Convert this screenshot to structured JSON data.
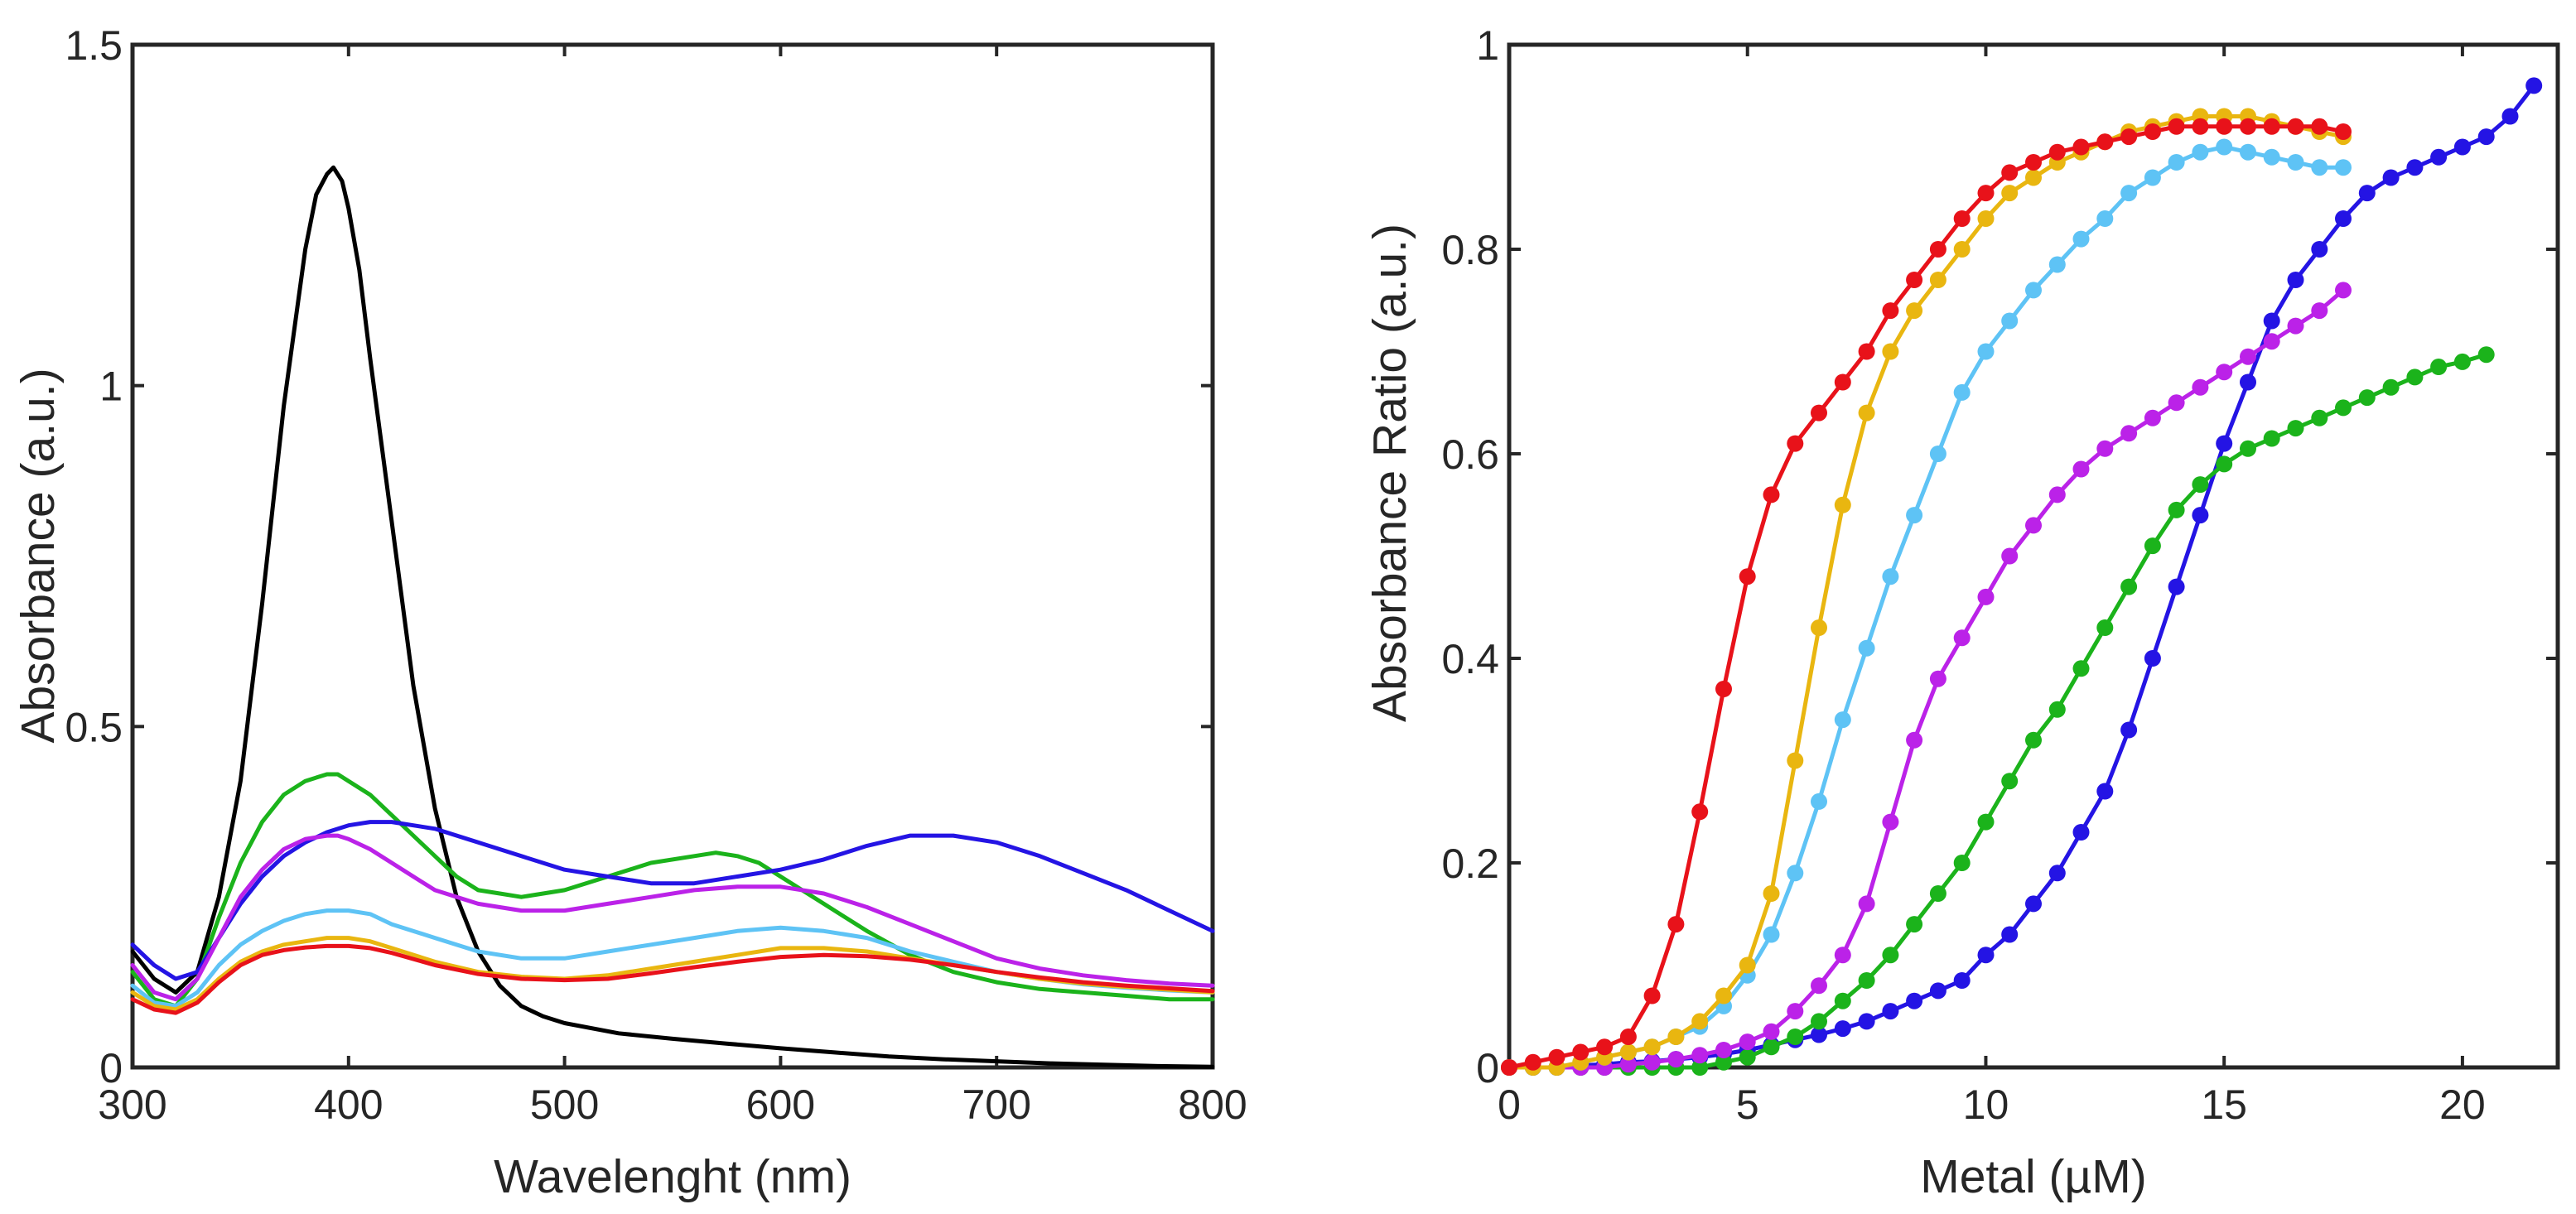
{
  "chart_data": [
    {
      "type": "line",
      "xlabel": "Wavelenght (nm)",
      "ylabel": "Absorbance (a.u.)",
      "xlim": [
        300,
        800
      ],
      "ylim": [
        0,
        1.5
      ],
      "xticks": [
        300,
        400,
        500,
        600,
        700,
        800
      ],
      "xtick_labels": [
        "300",
        "400",
        "500",
        "600",
        "700",
        "800"
      ],
      "yticks": [
        0,
        0.5,
        1,
        1.5
      ],
      "ytick_labels": [
        "0",
        "0.5",
        "1",
        "1.5"
      ],
      "grid": false,
      "series": [
        {
          "name": "black",
          "color": "#000000",
          "x": [
            300,
            310,
            320,
            330,
            340,
            350,
            360,
            370,
            380,
            385,
            390,
            393,
            397,
            400,
            405,
            410,
            420,
            430,
            440,
            450,
            460,
            470,
            480,
            490,
            500,
            525,
            550,
            575,
            600,
            625,
            650,
            675,
            700,
            725,
            750,
            775,
            800
          ],
          "y": [
            0.17,
            0.13,
            0.11,
            0.14,
            0.25,
            0.42,
            0.68,
            0.97,
            1.2,
            1.28,
            1.31,
            1.32,
            1.3,
            1.26,
            1.17,
            1.04,
            0.8,
            0.56,
            0.38,
            0.25,
            0.17,
            0.12,
            0.09,
            0.075,
            0.065,
            0.05,
            0.042,
            0.035,
            0.028,
            0.022,
            0.016,
            0.012,
            0.009,
            0.006,
            0.004,
            0.002,
            0.001
          ]
        },
        {
          "name": "green",
          "color": "#1bb31b",
          "x": [
            300,
            310,
            320,
            330,
            340,
            350,
            360,
            370,
            380,
            390,
            395,
            400,
            410,
            420,
            430,
            440,
            450,
            460,
            470,
            480,
            500,
            520,
            540,
            560,
            570,
            580,
            590,
            600,
            620,
            640,
            660,
            680,
            700,
            720,
            740,
            760,
            780,
            800
          ],
          "y": [
            0.14,
            0.1,
            0.09,
            0.13,
            0.22,
            0.3,
            0.36,
            0.4,
            0.42,
            0.43,
            0.43,
            0.42,
            0.4,
            0.37,
            0.34,
            0.31,
            0.28,
            0.26,
            0.255,
            0.25,
            0.26,
            0.28,
            0.3,
            0.31,
            0.315,
            0.31,
            0.3,
            0.28,
            0.24,
            0.2,
            0.165,
            0.14,
            0.125,
            0.115,
            0.11,
            0.105,
            0.1,
            0.1
          ]
        },
        {
          "name": "blue",
          "color": "#2414e4",
          "x": [
            300,
            310,
            320,
            330,
            340,
            350,
            360,
            370,
            380,
            390,
            400,
            410,
            420,
            430,
            440,
            460,
            480,
            500,
            520,
            540,
            560,
            580,
            600,
            620,
            640,
            660,
            680,
            700,
            720,
            740,
            760,
            780,
            800
          ],
          "y": [
            0.18,
            0.15,
            0.13,
            0.14,
            0.19,
            0.24,
            0.28,
            0.31,
            0.33,
            0.345,
            0.355,
            0.36,
            0.36,
            0.355,
            0.35,
            0.33,
            0.31,
            0.29,
            0.28,
            0.27,
            0.27,
            0.28,
            0.29,
            0.305,
            0.325,
            0.34,
            0.34,
            0.33,
            0.31,
            0.285,
            0.26,
            0.23,
            0.2
          ]
        },
        {
          "name": "magenta",
          "color": "#bb22e8",
          "x": [
            300,
            310,
            320,
            330,
            340,
            350,
            360,
            370,
            380,
            390,
            395,
            400,
            410,
            420,
            430,
            440,
            460,
            480,
            500,
            520,
            540,
            560,
            580,
            590,
            600,
            620,
            640,
            660,
            680,
            700,
            720,
            740,
            760,
            780,
            800
          ],
          "y": [
            0.15,
            0.11,
            0.1,
            0.13,
            0.19,
            0.25,
            0.29,
            0.32,
            0.335,
            0.34,
            0.34,
            0.335,
            0.32,
            0.3,
            0.28,
            0.26,
            0.24,
            0.23,
            0.23,
            0.24,
            0.25,
            0.26,
            0.265,
            0.265,
            0.265,
            0.255,
            0.235,
            0.21,
            0.185,
            0.16,
            0.145,
            0.135,
            0.128,
            0.123,
            0.12
          ]
        },
        {
          "name": "light blue",
          "color": "#5ec3f5",
          "x": [
            300,
            310,
            320,
            330,
            340,
            350,
            360,
            370,
            380,
            390,
            400,
            410,
            420,
            440,
            460,
            480,
            500,
            520,
            540,
            560,
            580,
            600,
            620,
            640,
            660,
            680,
            700,
            720,
            740,
            760,
            780,
            800
          ],
          "y": [
            0.12,
            0.095,
            0.09,
            0.11,
            0.15,
            0.18,
            0.2,
            0.215,
            0.225,
            0.23,
            0.23,
            0.225,
            0.21,
            0.19,
            0.17,
            0.16,
            0.16,
            0.17,
            0.18,
            0.19,
            0.2,
            0.205,
            0.2,
            0.19,
            0.17,
            0.155,
            0.14,
            0.13,
            0.122,
            0.117,
            0.113,
            0.11
          ]
        },
        {
          "name": "yellow",
          "color": "#e9b610",
          "x": [
            300,
            310,
            320,
            330,
            340,
            350,
            360,
            370,
            380,
            390,
            400,
            410,
            420,
            440,
            460,
            480,
            500,
            520,
            540,
            560,
            580,
            600,
            620,
            640,
            660,
            680,
            700,
            720,
            740,
            760,
            780,
            800
          ],
          "y": [
            0.11,
            0.09,
            0.085,
            0.1,
            0.13,
            0.155,
            0.17,
            0.18,
            0.185,
            0.19,
            0.19,
            0.185,
            0.175,
            0.155,
            0.14,
            0.133,
            0.13,
            0.135,
            0.145,
            0.155,
            0.165,
            0.175,
            0.175,
            0.17,
            0.16,
            0.15,
            0.14,
            0.13,
            0.123,
            0.118,
            0.114,
            0.11
          ]
        },
        {
          "name": "red",
          "color": "#e8121a",
          "x": [
            300,
            310,
            320,
            330,
            340,
            350,
            360,
            370,
            380,
            390,
            400,
            410,
            420,
            440,
            460,
            480,
            500,
            520,
            540,
            560,
            580,
            600,
            620,
            640,
            660,
            680,
            700,
            720,
            740,
            760,
            780,
            800
          ],
          "y": [
            0.1,
            0.085,
            0.08,
            0.095,
            0.125,
            0.15,
            0.165,
            0.172,
            0.176,
            0.178,
            0.178,
            0.175,
            0.168,
            0.15,
            0.137,
            0.13,
            0.128,
            0.13,
            0.138,
            0.147,
            0.155,
            0.162,
            0.165,
            0.163,
            0.158,
            0.15,
            0.14,
            0.132,
            0.125,
            0.12,
            0.116,
            0.112
          ]
        }
      ]
    },
    {
      "type": "line",
      "marker": "circle",
      "xlabel": "Metal (µM)",
      "ylabel": "Absorbance Ratio (a.u.)",
      "xlim": [
        0,
        22
      ],
      "ylim": [
        0,
        1
      ],
      "xticks": [
        0,
        5,
        10,
        15,
        20
      ],
      "xtick_labels": [
        "0",
        "5",
        "10",
        "15",
        "20"
      ],
      "yticks": [
        0,
        0.2,
        0.4,
        0.6,
        0.8,
        1
      ],
      "ytick_labels": [
        "0",
        "0.2",
        "0.4",
        "0.6",
        "0.8",
        "1"
      ],
      "grid": false,
      "series": [
        {
          "name": "blue",
          "color": "#2414e4",
          "x": [
            0,
            0.5,
            1,
            1.5,
            2,
            2.5,
            3,
            3.5,
            4,
            4.5,
            5,
            5.5,
            6,
            6.5,
            7,
            7.5,
            8,
            8.5,
            9,
            9.5,
            10,
            10.5,
            11,
            11.5,
            12,
            12.5,
            13,
            13.5,
            14,
            14.5,
            15,
            15.5,
            16,
            16.5,
            17,
            17.5,
            18,
            18.5,
            19,
            19.5,
            20,
            20.5,
            21,
            21.5
          ],
          "y": [
            0,
            0,
            0,
            0.002,
            0.003,
            0.005,
            0.006,
            0.008,
            0.01,
            0.013,
            0.017,
            0.022,
            0.027,
            0.032,
            0.038,
            0.045,
            0.055,
            0.065,
            0.075,
            0.085,
            0.11,
            0.13,
            0.16,
            0.19,
            0.23,
            0.27,
            0.33,
            0.4,
            0.47,
            0.54,
            0.61,
            0.67,
            0.73,
            0.77,
            0.8,
            0.83,
            0.855,
            0.87,
            0.88,
            0.89,
            0.9,
            0.91,
            0.93,
            0.96
          ]
        },
        {
          "name": "green",
          "color": "#1bb31b",
          "x": [
            0,
            0.5,
            1,
            1.5,
            2,
            2.5,
            3,
            3.5,
            4,
            4.5,
            5,
            5.5,
            6,
            6.5,
            7,
            7.5,
            8,
            8.5,
            9,
            9.5,
            10,
            10.5,
            11,
            11.5,
            12,
            12.5,
            13,
            13.5,
            14,
            14.5,
            15,
            15.5,
            16,
            16.5,
            17,
            17.5,
            18,
            18.5,
            19,
            19.5,
            20,
            20.5
          ],
          "y": [
            0,
            0,
            0,
            0,
            0,
            0,
            0,
            0,
            0,
            0.005,
            0.01,
            0.02,
            0.03,
            0.045,
            0.065,
            0.085,
            0.11,
            0.14,
            0.17,
            0.2,
            0.24,
            0.28,
            0.32,
            0.35,
            0.39,
            0.43,
            0.47,
            0.51,
            0.545,
            0.57,
            0.59,
            0.605,
            0.615,
            0.625,
            0.635,
            0.645,
            0.655,
            0.665,
            0.675,
            0.685,
            0.69,
            0.697
          ]
        },
        {
          "name": "magenta",
          "color": "#bb22e8",
          "x": [
            0,
            0.5,
            1,
            1.5,
            2,
            2.5,
            3,
            3.5,
            4,
            4.5,
            5,
            5.5,
            6,
            6.5,
            7,
            7.5,
            8,
            8.5,
            9,
            9.5,
            10,
            10.5,
            11,
            11.5,
            12,
            12.5,
            13,
            13.5,
            14,
            14.5,
            15,
            15.5,
            16,
            16.5,
            17,
            17.5
          ],
          "y": [
            0,
            0,
            0,
            0,
            0,
            0.003,
            0.005,
            0.008,
            0.012,
            0.017,
            0.025,
            0.035,
            0.055,
            0.08,
            0.11,
            0.16,
            0.24,
            0.32,
            0.38,
            0.42,
            0.46,
            0.5,
            0.53,
            0.56,
            0.585,
            0.605,
            0.62,
            0.635,
            0.65,
            0.665,
            0.68,
            0.695,
            0.71,
            0.725,
            0.74,
            0.76
          ]
        },
        {
          "name": "light blue",
          "color": "#5ec3f5",
          "x": [
            0,
            0.5,
            1,
            1.5,
            2,
            2.5,
            3,
            3.5,
            4,
            4.5,
            5,
            5.5,
            6,
            6.5,
            7,
            7.5,
            8,
            8.5,
            9,
            9.5,
            10,
            10.5,
            11,
            11.5,
            12,
            12.5,
            13,
            13.5,
            14,
            14.5,
            15,
            15.5,
            16,
            16.5,
            17,
            17.5
          ],
          "y": [
            0,
            0,
            0,
            0.005,
            0.01,
            0.015,
            0.02,
            0.03,
            0.04,
            0.06,
            0.09,
            0.13,
            0.19,
            0.26,
            0.34,
            0.41,
            0.48,
            0.54,
            0.6,
            0.66,
            0.7,
            0.73,
            0.76,
            0.785,
            0.81,
            0.83,
            0.855,
            0.87,
            0.885,
            0.895,
            0.9,
            0.895,
            0.89,
            0.885,
            0.88,
            0.88
          ]
        },
        {
          "name": "yellow",
          "color": "#e9b610",
          "x": [
            0,
            0.5,
            1,
            1.5,
            2,
            2.5,
            3,
            3.5,
            4,
            4.5,
            5,
            5.5,
            6,
            6.5,
            7,
            7.5,
            8,
            8.5,
            9,
            9.5,
            10,
            10.5,
            11,
            11.5,
            12,
            12.5,
            13,
            13.5,
            14,
            14.5,
            15,
            15.5,
            16,
            16.5,
            17,
            17.5
          ],
          "y": [
            0,
            0,
            0,
            0.005,
            0.01,
            0.015,
            0.02,
            0.03,
            0.045,
            0.07,
            0.1,
            0.17,
            0.3,
            0.43,
            0.55,
            0.64,
            0.7,
            0.74,
            0.77,
            0.8,
            0.83,
            0.855,
            0.87,
            0.885,
            0.895,
            0.905,
            0.915,
            0.92,
            0.925,
            0.93,
            0.93,
            0.93,
            0.925,
            0.92,
            0.915,
            0.91
          ]
        },
        {
          "name": "red",
          "color": "#e8121a",
          "x": [
            0,
            0.5,
            1,
            1.5,
            2,
            2.5,
            3,
            3.5,
            4,
            4.5,
            5,
            5.5,
            6,
            6.5,
            7,
            7.5,
            8,
            8.5,
            9,
            9.5,
            10,
            10.5,
            11,
            11.5,
            12,
            12.5,
            13,
            13.5,
            14,
            14.5,
            15,
            15.5,
            16,
            16.5,
            17,
            17.5
          ],
          "y": [
            0,
            0.005,
            0.01,
            0.015,
            0.02,
            0.03,
            0.07,
            0.14,
            0.25,
            0.37,
            0.48,
            0.56,
            0.61,
            0.64,
            0.67,
            0.7,
            0.74,
            0.77,
            0.8,
            0.83,
            0.855,
            0.875,
            0.885,
            0.895,
            0.9,
            0.905,
            0.91,
            0.915,
            0.92,
            0.92,
            0.92,
            0.92,
            0.92,
            0.92,
            0.92,
            0.915
          ]
        }
      ]
    }
  ]
}
